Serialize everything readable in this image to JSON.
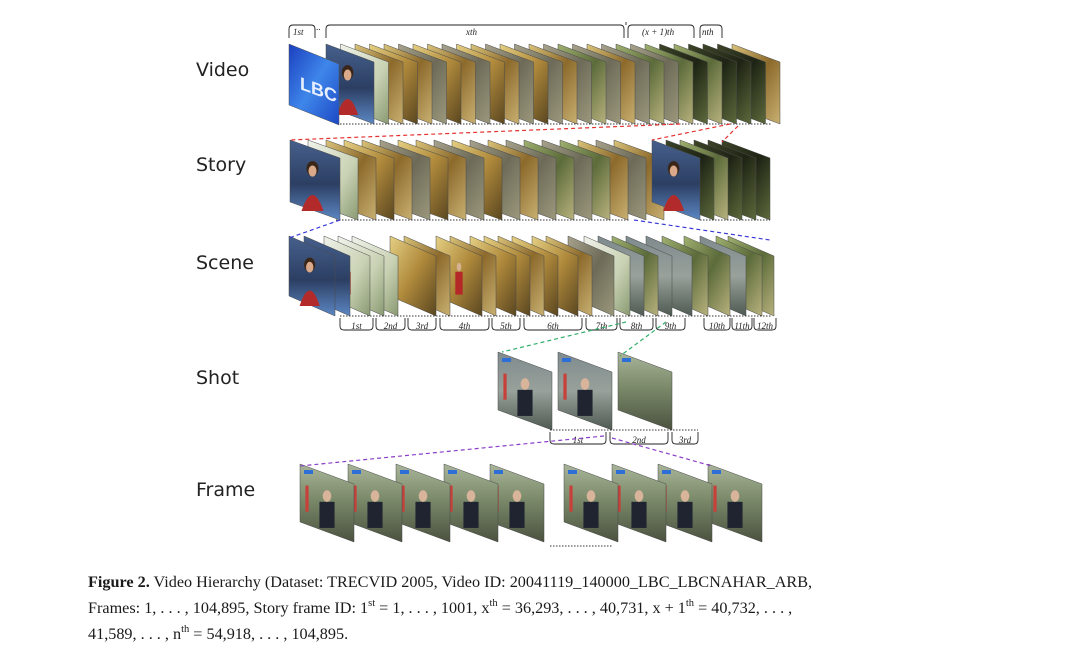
{
  "levels": {
    "video": "Video",
    "story": "Story",
    "scene": "Scene",
    "shot": "Shot",
    "frame": "Frame"
  },
  "video_brackets": {
    "first": "1st",
    "ellipsis": "...",
    "x": "xth",
    "x_plus_1": "(x + 1)th",
    "n": "nth"
  },
  "scene_labels": [
    "1st",
    "2nd",
    "3rd",
    "4th",
    "5th",
    "6th",
    "7th",
    "8th",
    "9th",
    "10th",
    "11th",
    "12th"
  ],
  "shot_labels": [
    "1st",
    "2nd",
    "3rd"
  ],
  "thumbnail_logo": "LBC",
  "colors": {
    "video_story_link": "#e53030",
    "story_scene_link": "#3a3ad8",
    "scene_shot_link": "#2fae6a",
    "shot_frame_link": "#8a3ec8",
    "lbc_blue": "#2d6fd6"
  },
  "caption": {
    "label": "Figure 2.",
    "line1": "Video Hierarchy (Dataset: TRECVID 2005, Video ID: 20041119_140000_LBC_LBCNAHAR_ARB,",
    "line2_a": "Frames: 1, . . . , 104,895, Story frame ID: 1",
    "line2_sup1": "st",
    "line2_b": " = 1, . . . , 1001, x",
    "line2_sup2": "th",
    "line2_c": " = 36,293, . . . , 40,731, x + 1",
    "line2_sup3": "th",
    "line2_d": " = 40,732, . . . ,",
    "line3_a": "41,589, . . . , n",
    "line3_sup": "th",
    "line3_b": " = 54,918, . . . , 104,895."
  }
}
